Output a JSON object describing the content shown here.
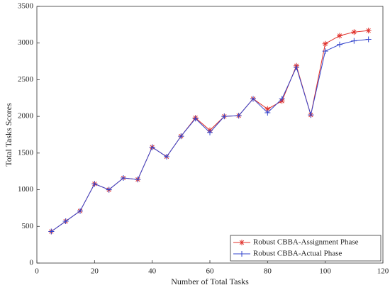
{
  "chart_data": {
    "type": "line",
    "xlabel": "Number of Total Tasks",
    "ylabel": "Total Tasks Scores",
    "x": [
      5,
      10,
      15,
      20,
      25,
      30,
      35,
      40,
      45,
      50,
      55,
      60,
      65,
      70,
      75,
      80,
      85,
      90,
      95,
      100,
      105,
      110,
      115
    ],
    "series": [
      {
        "name": "Robust CBBA-Assignment Phase",
        "color": "#e0302a",
        "marker": "asterisk",
        "values": [
          430,
          570,
          710,
          1080,
          1000,
          1160,
          1140,
          1580,
          1450,
          1730,
          1980,
          1810,
          2000,
          2010,
          2240,
          2100,
          2210,
          2690,
          2020,
          2990,
          3100,
          3150,
          3170
        ]
      },
      {
        "name": "Robust CBBA-Actual Phase",
        "color": "#3344cc",
        "marker": "plus",
        "values": [
          430,
          570,
          710,
          1080,
          1000,
          1160,
          1140,
          1580,
          1450,
          1730,
          1970,
          1780,
          2000,
          2010,
          2240,
          2050,
          2240,
          2670,
          2020,
          2890,
          2980,
          3030,
          3050
        ]
      }
    ],
    "xlim": [
      0,
      120
    ],
    "xticks": [
      0,
      20,
      40,
      60,
      80,
      100,
      120
    ],
    "ylim": [
      0,
      3500
    ],
    "yticks": [
      0,
      500,
      1000,
      1500,
      2000,
      2500,
      3000,
      3500
    ],
    "grid": false,
    "legend": "lower right"
  }
}
